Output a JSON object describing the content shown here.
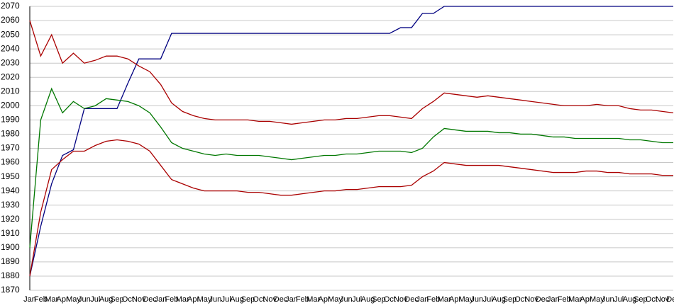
{
  "chart_data": {
    "type": "line",
    "categories": [
      "Jan",
      "Feb",
      "Mar",
      "Apr",
      "May",
      "Jun",
      "Jul",
      "Aug",
      "Sep",
      "Oct",
      "Nov",
      "Dec",
      "Jan",
      "Feb",
      "Mar",
      "Apr",
      "May",
      "Jun",
      "Jul",
      "Aug",
      "Sep",
      "Oct",
      "Nov",
      "Dec",
      "Jan",
      "Feb",
      "Mar",
      "Apr",
      "May",
      "Jun",
      "Jul",
      "Aug",
      "Sep",
      "Oct",
      "Nov",
      "Dec",
      "Jan",
      "Feb",
      "Mar",
      "Apr",
      "May",
      "Jun",
      "Jul",
      "Aug",
      "Sep",
      "Oct",
      "Nov",
      "Dec",
      "Jan",
      "Feb",
      "Mar",
      "Apr",
      "May",
      "Jun",
      "Jul",
      "Aug",
      "Sep",
      "Oct",
      "Nov",
      "Dec"
    ],
    "series": [
      {
        "color": "#000080",
        "values": [
          1880,
          1915,
          1945,
          1965,
          1969,
          1998,
          1998,
          1998,
          1998,
          2016,
          2033,
          2033,
          2033,
          2051,
          2051,
          2051,
          2051,
          2051,
          2051,
          2051,
          2051,
          2051,
          2051,
          2051,
          2051,
          2051,
          2051,
          2051,
          2051,
          2051,
          2051,
          2051,
          2051,
          2051,
          2055,
          2055,
          2065,
          2065,
          2070,
          2070,
          2070,
          2070,
          2070,
          2070,
          2070,
          2070,
          2070,
          2070,
          2070,
          2070,
          2070,
          2070,
          2070,
          2070,
          2070,
          2070,
          2070,
          2070,
          2070,
          2070
        ]
      },
      {
        "color": "#aa0000",
        "values": [
          2060,
          2035,
          2050,
          2030,
          2037,
          2030,
          2032,
          2035,
          2035,
          2033,
          2028,
          2024,
          2015,
          2002,
          1996,
          1993,
          1991,
          1990,
          1990,
          1990,
          1990,
          1989,
          1989,
          1988,
          1987,
          1988,
          1989,
          1990,
          1990,
          1991,
          1991,
          1992,
          1993,
          1993,
          1992,
          1991,
          1998,
          2003,
          2009,
          2008,
          2007,
          2006,
          2007,
          2006,
          2005,
          2004,
          2003,
          2002,
          2001,
          2000,
          2000,
          2000,
          2001,
          2000,
          2000,
          1998,
          1997,
          1997,
          1996,
          1995
        ]
      },
      {
        "color": "#007700",
        "values": [
          1900,
          1990,
          2012,
          1995,
          2003,
          1998,
          2000,
          2005,
          2004,
          2003,
          2000,
          1995,
          1985,
          1974,
          1970,
          1968,
          1966,
          1965,
          1966,
          1965,
          1965,
          1965,
          1964,
          1963,
          1962,
          1963,
          1964,
          1965,
          1965,
          1966,
          1966,
          1967,
          1968,
          1968,
          1968,
          1967,
          1970,
          1978,
          1984,
          1983,
          1982,
          1982,
          1982,
          1981,
          1981,
          1980,
          1980,
          1979,
          1978,
          1978,
          1977,
          1977,
          1977,
          1977,
          1977,
          1976,
          1976,
          1975,
          1974,
          1974
        ]
      },
      {
        "color": "#aa0000",
        "values": [
          1880,
          1925,
          1955,
          1962,
          1968,
          1968,
          1972,
          1975,
          1976,
          1975,
          1973,
          1968,
          1958,
          1948,
          1945,
          1942,
          1940,
          1940,
          1940,
          1940,
          1939,
          1939,
          1938,
          1937,
          1937,
          1938,
          1939,
          1940,
          1940,
          1941,
          1941,
          1942,
          1943,
          1943,
          1943,
          1944,
          1950,
          1954,
          1960,
          1959,
          1958,
          1958,
          1958,
          1958,
          1957,
          1956,
          1955,
          1954,
          1953,
          1953,
          1953,
          1954,
          1954,
          1953,
          1953,
          1952,
          1952,
          1952,
          1951,
          1951
        ]
      }
    ],
    "ylim": [
      1870,
      2070
    ],
    "yticks": [
      1870,
      1880,
      1890,
      1900,
      1910,
      1920,
      1930,
      1940,
      1950,
      1960,
      1970,
      1980,
      1990,
      2000,
      2010,
      2020,
      2030,
      2040,
      2050,
      2060,
      2070
    ],
    "grid": true
  }
}
